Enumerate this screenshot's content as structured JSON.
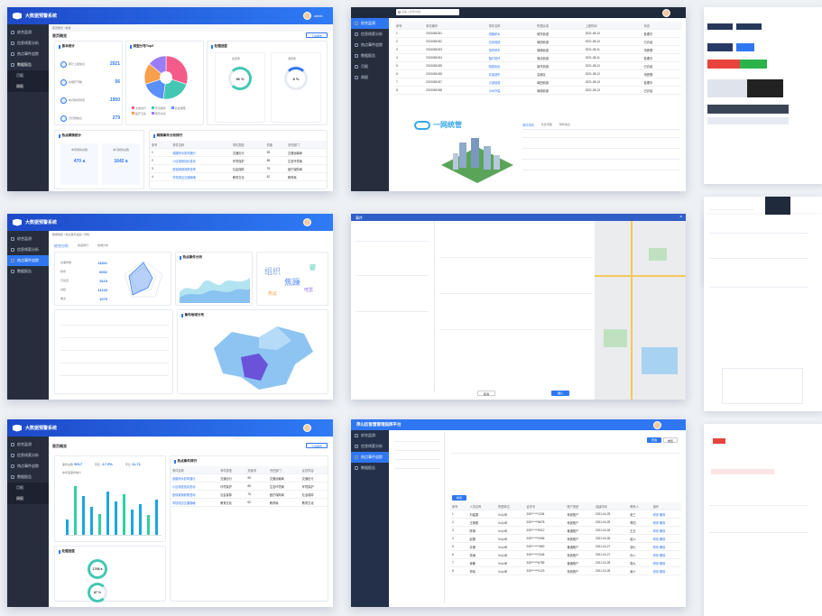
{
  "app": {
    "title": "大数据预警系统",
    "user": "admin",
    "export": "下载报告",
    "home": "首页概览"
  },
  "nav": {
    "items": [
      "综合监测",
      "信息线索分析",
      "热点事件追踪",
      "数据报告",
      "月报",
      "周报"
    ],
    "items_b": [
      "综合监测",
      "信息线索分析",
      "热点事件追踪",
      "数据报告"
    ],
    "crumb": "首页概览 / 报告",
    "crumb_b": "数据报告 / 热点事件追踪 / 详情"
  },
  "s1": {
    "stats_title": "基本统计",
    "stats": [
      {
        "label": "累计上报信息",
        "value": "2021"
      },
      {
        "label": "办理环节数",
        "value": "56"
      },
      {
        "label": "本月新增线索",
        "value": "1950"
      },
      {
        "label": "已归档信息",
        "value": "279"
      }
    ],
    "donut_title": "类型分布Top5",
    "legend": [
      "交通出行",
      "环境保护",
      "社会保障",
      "医疗卫生",
      "教育文化"
    ],
    "rings_title": "处理进度",
    "rings": [
      {
        "label": "处置率",
        "value": "96 %"
      },
      {
        "label": "满意率",
        "value": "8 %"
      }
    ],
    "hot_title": "热点舆情统计",
    "hot": [
      {
        "label": "本周舆情总数",
        "value": "470 a"
      },
      {
        "label": "本月舆情总数",
        "value": "1642 a"
      }
    ],
    "list_title": "舆情事件分析排行",
    "cols": [
      "序号",
      "事件名称",
      "事件类型",
      "热度",
      "责任部门"
    ],
    "rows": [
      [
        "1",
        "道路积水影响通行",
        "交通出行",
        "95",
        "交通运输局"
      ],
      [
        "2",
        "小区噪音扰民投诉",
        "环境保护",
        "88",
        "生态环境局"
      ],
      [
        "3",
        "医保报销政策咨询",
        "社会保障",
        "76",
        "医疗保障局"
      ],
      [
        "4",
        "学校周边交通拥堵",
        "教育文化",
        "62",
        "教育局"
      ]
    ]
  },
  "s2": {
    "search": "请输入搜索内容",
    "cols": [
      "序号",
      "事件编号",
      "事件名称",
      "所属区域",
      "上报时间",
      "状态"
    ],
    "rows": [
      [
        "1",
        "2021081001",
        "道路积水",
        "城东街道",
        "2021-08-10",
        "处理中"
      ],
      [
        "2",
        "2021081002",
        "垃圾堆放",
        "城西街道",
        "2021-08-10",
        "已办结"
      ],
      [
        "3",
        "2021081003",
        "违章停车",
        "城南街道",
        "2021-08-11",
        "待受理"
      ],
      [
        "4",
        "2021081004",
        "路灯损坏",
        "城北街道",
        "2021-08-11",
        "处理中"
      ],
      [
        "5",
        "2021081005",
        "噪音扰民",
        "城东街道",
        "2021-08-12",
        "已办结"
      ],
      [
        "6",
        "2021081006",
        "井盖缺失",
        "高新区",
        "2021-08-12",
        "待受理"
      ],
      [
        "7",
        "2021081007",
        "占道经营",
        "城西街道",
        "2021-08-13",
        "处理中"
      ],
      [
        "8",
        "2021081008",
        "污水外溢",
        "城南街道",
        "2021-08-13",
        "已办结"
      ]
    ],
    "brand": "一网统管",
    "detail_tabs": [
      "事件详情",
      "处置流程",
      "附件信息"
    ]
  },
  "s3": {
    "tabs": [
      "综合分析",
      "热度排行",
      "地域分布"
    ],
    "kpis": [
      {
        "label": "总事件数",
        "value": "11811"
      },
      {
        "label": "新增",
        "value": "8092"
      },
      {
        "label": "已处置",
        "value": "5115"
      },
      {
        "label": "办结",
        "value": "11133"
      },
      {
        "label": "重点",
        "value": "1075"
      }
    ],
    "map_title": "事件地域分布",
    "trend_title": "热点事件分析",
    "cloud": [
      "组织",
      "焦躁",
      "婴",
      "喧嚣",
      "热议",
      "民生"
    ]
  },
  "s4": {
    "title": "事件",
    "confirm": "确认",
    "cancel": "取消"
  },
  "s5": {
    "stats": [
      {
        "label": "事件总数",
        "value": "9017"
      },
      {
        "label": "同比",
        "value": "-17.9%"
      },
      {
        "label": "环比",
        "value": "11.71"
      }
    ],
    "bar_title": "本年度事件统计",
    "progress": {
      "label": "处理进度",
      "value": "1798 a"
    },
    "progress2": "87 %",
    "list_title": "热点事件排行",
    "cols": [
      "事件名称",
      "事件类型",
      "关键词",
      "责任部门",
      "反馈内容"
    ]
  },
  "s6": {
    "title": "萍山区智慧管理指挥平台",
    "cols": [
      "序号",
      "人员名称",
      "所属单位",
      "证件号",
      "账户类型",
      "创建时间",
      "联系人",
      "操作"
    ],
    "rows": [
      [
        "1",
        "刘建国",
        "Xx公司",
        "330******1234",
        "系统账户",
        "2021-04-25",
        "张三",
        "修改 删除"
      ],
      [
        "2",
        "王美丽",
        "Xx公司",
        "330******5678",
        "系统账户",
        "2021-04-25",
        "李四",
        "修改 删除"
      ],
      [
        "3",
        "陈明",
        "Xx公司",
        "330******9012",
        "普通账户",
        "2021-04-26",
        "王五",
        "修改 删除"
      ],
      [
        "4",
        "赵刚",
        "Xx公司",
        "330******3456",
        "系统账户",
        "2021-04-26",
        "赵六",
        "修改 删除"
      ],
      [
        "5",
        "孙丽",
        "Xx公司",
        "330******7890",
        "普通账户",
        "2021-04-27",
        "钱七",
        "修改 删除"
      ],
      [
        "6",
        "周涛",
        "Xx公司",
        "330******2345",
        "系统账户",
        "2021-04-27",
        "孙八",
        "修改 删除"
      ],
      [
        "7",
        "吴敏",
        "Xx公司",
        "330******6789",
        "普通账户",
        "2021-04-28",
        "周九",
        "修改 删除"
      ],
      [
        "8",
        "郑伟",
        "Xx公司",
        "330******0123",
        "系统账户",
        "2021-04-28",
        "吴十",
        "修改 删除"
      ]
    ],
    "add": "新增",
    "search": "查询",
    "reset": "重置"
  },
  "chart_data": [
    {
      "type": "pie",
      "categories": [
        "交通出行",
        "环境保护",
        "社会保障",
        "医疗卫生",
        "教育文化"
      ],
      "values": [
        30,
        22,
        18,
        16,
        14
      ],
      "colors": [
        "#f45b8a",
        "#43c7b3",
        "#5b8ff9",
        "#f6a04d",
        "#9a7cf4"
      ]
    },
    {
      "type": "bar",
      "categories": [
        "1",
        "2",
        "3",
        "4",
        "5",
        "6",
        "7",
        "8",
        "9",
        "10",
        "11",
        "12"
      ],
      "values": [
        22,
        70,
        55,
        40,
        30,
        62,
        48,
        58,
        36,
        44,
        28,
        50
      ],
      "ylim": [
        0,
        80
      ]
    }
  ]
}
